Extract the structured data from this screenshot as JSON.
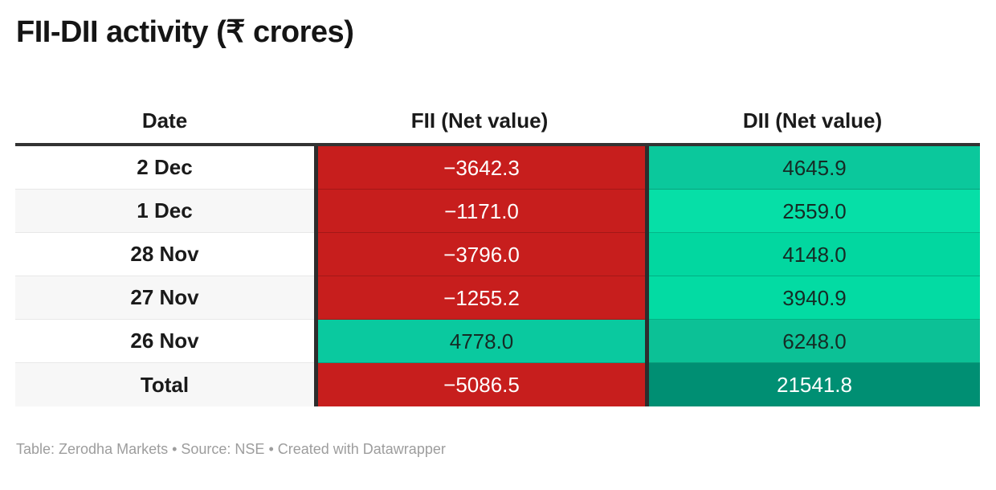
{
  "title": "FII-DII activity (₹ crores)",
  "table": {
    "columns": {
      "date": "Date",
      "fii": "FII (Net value)",
      "dii": "DII (Net value)"
    },
    "rows": [
      {
        "date": "2 Dec",
        "fii": "−3642.3",
        "dii": "4645.9",
        "fii_bg": "#c71e1d",
        "fii_color": "#ffffff",
        "dii_bg": "#0bc89c",
        "dii_color": "#152b25"
      },
      {
        "date": "1 Dec",
        "fii": "−1171.0",
        "dii": "2559.0",
        "fii_bg": "#c71e1d",
        "fii_color": "#ffffff",
        "dii_bg": "#06dfa7",
        "dii_color": "#152b25"
      },
      {
        "date": "28 Nov",
        "fii": "−3796.0",
        "dii": "4148.0",
        "fii_bg": "#c71e1d",
        "fii_color": "#ffffff",
        "dii_bg": "#02d7a0",
        "dii_color": "#152b25"
      },
      {
        "date": "27 Nov",
        "fii": "−1255.2",
        "dii": "3940.9",
        "fii_bg": "#c71e1d",
        "fii_color": "#ffffff",
        "dii_bg": "#03dba3",
        "dii_color": "#152b25"
      },
      {
        "date": "26 Nov",
        "fii": "4778.0",
        "dii": "6248.0",
        "fii_bg": "#0ac99f",
        "fii_color": "#152b25",
        "dii_bg": "#0cc196",
        "dii_color": "#152b25"
      },
      {
        "date": "Total",
        "fii": "−5086.5",
        "dii": "21541.8",
        "fii_bg": "#c71e1d",
        "fii_color": "#ffffff",
        "dii_bg": "#008f73",
        "dii_color": "#ffffff"
      }
    ]
  },
  "footer": "Table: Zerodha Markets • Source: NSE • Created with Datawrapper",
  "colors": {
    "negative_red": "#c71e1d",
    "positive_green_light": "#06dfa7",
    "positive_green_dark": "#008f73",
    "header_border": "#333333",
    "alt_row_bg": "#f7f7f7",
    "footer_text": "#9d9d9d"
  },
  "chart_data": {
    "type": "table",
    "title": "FII-DII activity (₹ crores)",
    "columns": [
      "Date",
      "FII (Net value)",
      "DII (Net value)"
    ],
    "rows": [
      [
        "2 Dec",
        -3642.3,
        4645.9
      ],
      [
        "1 Dec",
        -1171.0,
        2559.0
      ],
      [
        "28 Nov",
        -3796.0,
        4148.0
      ],
      [
        "27 Nov",
        -1255.2,
        3940.9
      ],
      [
        "26 Nov",
        4778.0,
        6248.0
      ],
      [
        "Total",
        -5086.5,
        21541.8
      ]
    ],
    "cell_coloring": "heatmap: negative values red #c71e1d with white text; positive values on green scale, darker teal for larger values; Total DII darkest green #008f73",
    "attribution": "Table: Zerodha Markets • Source: NSE • Created with Datawrapper"
  }
}
